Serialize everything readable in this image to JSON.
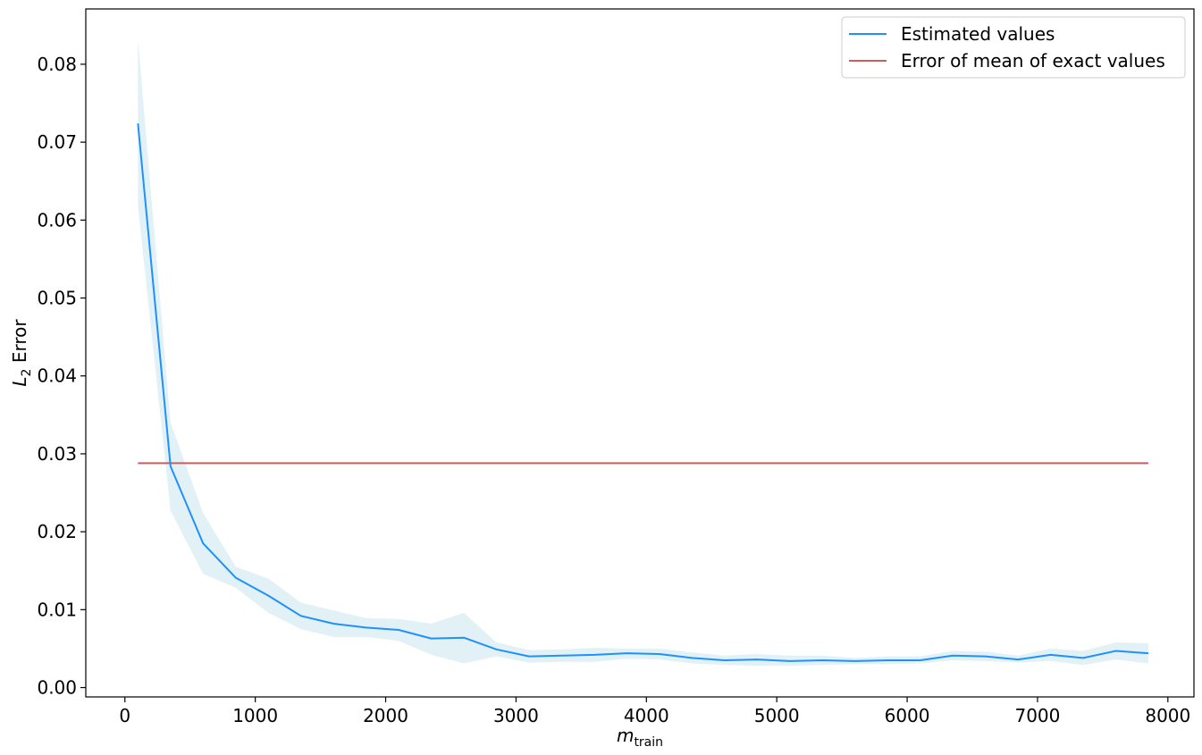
{
  "chart_data": {
    "type": "line",
    "xlabel": {
      "main": "m",
      "sub": "train"
    },
    "ylabel": {
      "main": "L",
      "sub": "2",
      "rest": " Error"
    },
    "xlim": [
      -300,
      8200
    ],
    "ylim": [
      -0.0012,
      0.0871
    ],
    "xticks": [
      0,
      1000,
      2000,
      3000,
      4000,
      5000,
      6000,
      7000,
      8000
    ],
    "yticks": [
      0.0,
      0.01,
      0.02,
      0.03,
      0.04,
      0.05,
      0.06,
      0.07,
      0.08
    ],
    "ytick_labels": [
      "0.00",
      "0.01",
      "0.02",
      "0.03",
      "0.04",
      "0.05",
      "0.06",
      "0.07",
      "0.08"
    ],
    "legend_position": "top-right",
    "series": [
      {
        "name": "Estimated values",
        "color": "#1e90ff",
        "band_color": "#add8e6",
        "x": [
          100,
          350,
          600,
          850,
          1100,
          1350,
          1600,
          1850,
          2100,
          2350,
          2600,
          2850,
          3100,
          3350,
          3600,
          3850,
          4100,
          4350,
          4600,
          4850,
          5100,
          5350,
          5600,
          5850,
          6100,
          6350,
          6600,
          6850,
          7100,
          7350,
          7600,
          7850
        ],
        "y": [
          0.0724,
          0.0284,
          0.0185,
          0.0141,
          0.0118,
          0.0092,
          0.0082,
          0.0077,
          0.0074,
          0.0063,
          0.0064,
          0.0049,
          0.004,
          0.0041,
          0.0042,
          0.0044,
          0.0043,
          0.0038,
          0.0035,
          0.0036,
          0.0034,
          0.0035,
          0.0034,
          0.0035,
          0.0035,
          0.0041,
          0.004,
          0.0036,
          0.0042,
          0.0038,
          0.0047,
          0.0044
        ],
        "lower": [
          0.0618,
          0.0227,
          0.0146,
          0.0128,
          0.0096,
          0.0075,
          0.0065,
          0.0065,
          0.006,
          0.0042,
          0.0031,
          0.004,
          0.0032,
          0.0033,
          0.0033,
          0.0037,
          0.0036,
          0.0031,
          0.0029,
          0.0028,
          0.0028,
          0.0029,
          0.003,
          0.003,
          0.0031,
          0.0035,
          0.0034,
          0.0032,
          0.0034,
          0.0029,
          0.0036,
          0.0031
        ],
        "upper": [
          0.0832,
          0.034,
          0.0224,
          0.0155,
          0.014,
          0.0109,
          0.0099,
          0.0089,
          0.0088,
          0.0082,
          0.0096,
          0.0058,
          0.0048,
          0.0049,
          0.0051,
          0.005,
          0.005,
          0.0045,
          0.0041,
          0.0043,
          0.0041,
          0.0041,
          0.0038,
          0.004,
          0.004,
          0.0047,
          0.0046,
          0.0041,
          0.005,
          0.0047,
          0.0058,
          0.0057
        ]
      },
      {
        "name": "Error of mean of exact values",
        "color": "#cd5c5c",
        "x": [
          100,
          7850
        ],
        "y": [
          0.0288,
          0.0288
        ]
      }
    ]
  }
}
